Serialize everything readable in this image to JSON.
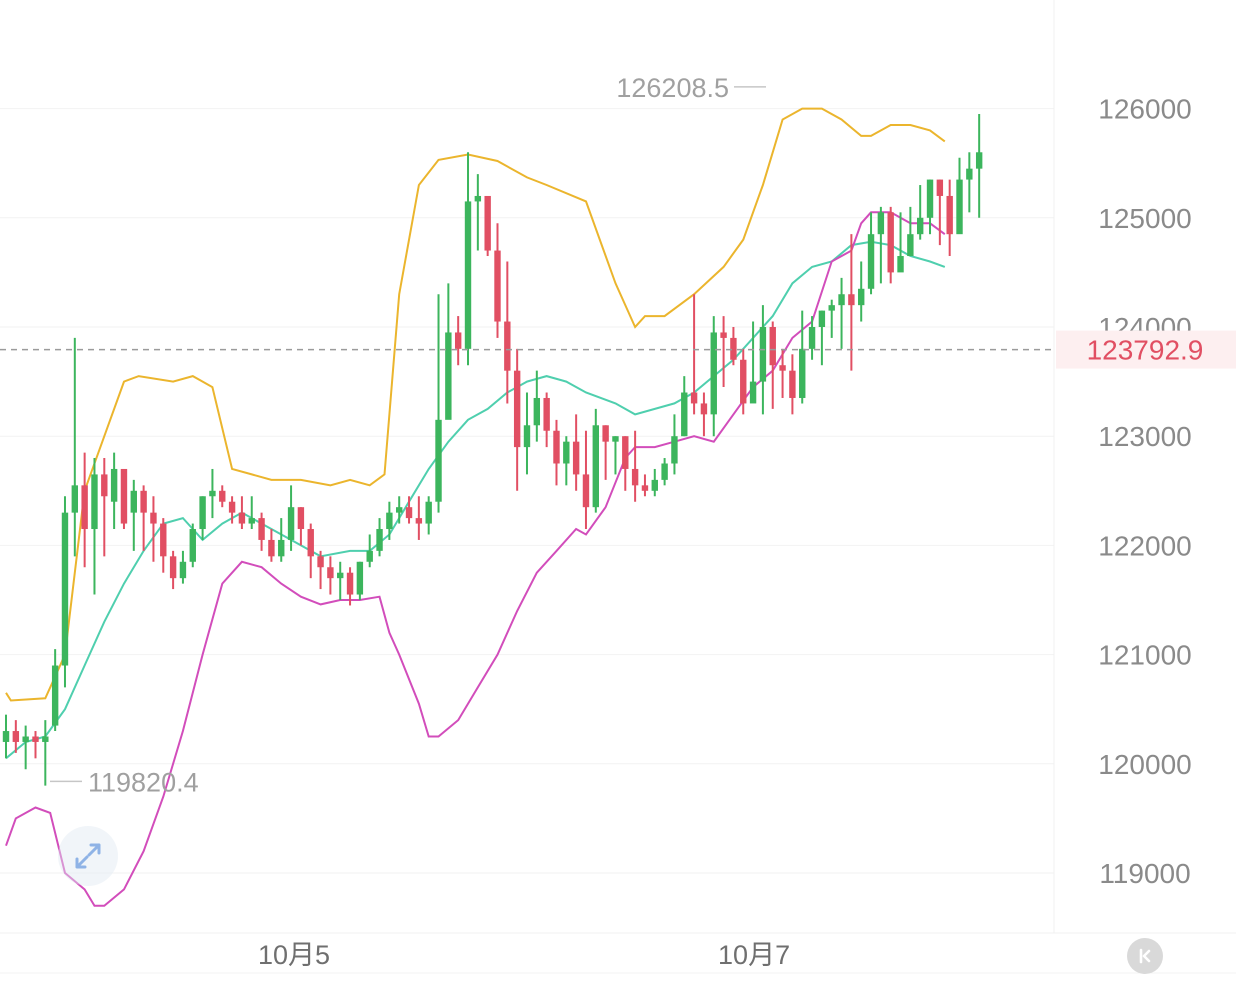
{
  "chart_data": {
    "type": "candlestick",
    "x_ticks": [
      "10月5",
      "10月7"
    ],
    "y_ticks": [
      "126000",
      "125000",
      "124000",
      "123000",
      "122000",
      "121000",
      "120000",
      "119000"
    ],
    "ylim": [
      118500,
      126750
    ],
    "current_price": "123792.9",
    "annotations": {
      "high": "126208.5",
      "low": "119820.4"
    },
    "grid": true,
    "colors": {
      "up": "#3cb55d",
      "down": "#e14f63",
      "upper_band": "#ebb52d",
      "middle_band": "#4fcfae",
      "lower_band": "#d24dbb",
      "price_line": "#9b9b9b",
      "price_label": "#e14f63"
    },
    "bands": {
      "upper": [
        [
          0,
          120650
        ],
        [
          0.5,
          120580
        ],
        [
          4,
          120600
        ],
        [
          6,
          121000
        ],
        [
          8,
          122500
        ],
        [
          10,
          123000
        ],
        [
          12,
          123500
        ],
        [
          13.5,
          123550
        ],
        [
          17,
          123500
        ],
        [
          19,
          123550
        ],
        [
          21,
          123450
        ],
        [
          23,
          122700
        ],
        [
          25,
          122650
        ],
        [
          27,
          122600
        ],
        [
          30,
          122600
        ],
        [
          33,
          122550
        ],
        [
          35,
          122600
        ],
        [
          37,
          122550
        ],
        [
          38.5,
          122650
        ],
        [
          40,
          124300
        ],
        [
          42,
          125300
        ],
        [
          44,
          125530
        ],
        [
          47,
          125580
        ],
        [
          50,
          125520
        ],
        [
          53,
          125370
        ],
        [
          55,
          125300
        ],
        [
          59,
          125150
        ],
        [
          62,
          124400
        ],
        [
          64,
          124000
        ],
        [
          65,
          124100
        ],
        [
          67,
          124100
        ],
        [
          70,
          124300
        ],
        [
          73,
          124550
        ],
        [
          75,
          124800
        ],
        [
          77,
          125300
        ],
        [
          79,
          125900
        ],
        [
          81,
          126000
        ],
        [
          83,
          126000
        ],
        [
          85,
          125900
        ],
        [
          87,
          125750
        ],
        [
          88,
          125750
        ],
        [
          90,
          125850
        ],
        [
          92,
          125850
        ],
        [
          94,
          125800
        ],
        [
          95.5,
          125700
        ]
      ],
      "middle": [
        [
          0,
          120050
        ],
        [
          2,
          120200
        ],
        [
          4,
          120250
        ],
        [
          6,
          120500
        ],
        [
          8,
          120900
        ],
        [
          10,
          121300
        ],
        [
          12,
          121650
        ],
        [
          14,
          121950
        ],
        [
          16,
          122200
        ],
        [
          18,
          122250
        ],
        [
          20,
          122050
        ],
        [
          22,
          122200
        ],
        [
          24,
          122300
        ],
        [
          26,
          122200
        ],
        [
          29,
          122050
        ],
        [
          32,
          121900
        ],
        [
          35,
          121950
        ],
        [
          37,
          121950
        ],
        [
          39,
          122100
        ],
        [
          41,
          122400
        ],
        [
          43,
          122700
        ],
        [
          45,
          122950
        ],
        [
          47,
          123150
        ],
        [
          49,
          123250
        ],
        [
          51,
          123400
        ],
        [
          53,
          123500
        ],
        [
          55,
          123550
        ],
        [
          57,
          123500
        ],
        [
          59,
          123400
        ],
        [
          62,
          123300
        ],
        [
          64,
          123200
        ],
        [
          66,
          123250
        ],
        [
          68,
          123300
        ],
        [
          70,
          123400
        ],
        [
          72,
          123550
        ],
        [
          74,
          123700
        ],
        [
          76,
          123900
        ],
        [
          78,
          124100
        ],
        [
          80,
          124400
        ],
        [
          82,
          124550
        ],
        [
          84,
          124600
        ],
        [
          86,
          124750
        ],
        [
          88,
          124780
        ],
        [
          90,
          124750
        ],
        [
          92,
          124650
        ],
        [
          94,
          124600
        ],
        [
          95.5,
          124550
        ]
      ],
      "lower": [
        [
          0,
          119250
        ],
        [
          1,
          119500
        ],
        [
          3,
          119600
        ],
        [
          4.5,
          119550
        ],
        [
          6,
          119000
        ],
        [
          8,
          118850
        ],
        [
          9,
          118700
        ],
        [
          10,
          118700
        ],
        [
          12,
          118850
        ],
        [
          14,
          119200
        ],
        [
          16,
          119700
        ],
        [
          18,
          120300
        ],
        [
          20,
          121000
        ],
        [
          22,
          121650
        ],
        [
          24,
          121850
        ],
        [
          26,
          121800
        ],
        [
          28,
          121650
        ],
        [
          30,
          121530
        ],
        [
          32,
          121460
        ],
        [
          34,
          121500
        ],
        [
          36,
          121500
        ],
        [
          38,
          121530
        ],
        [
          39,
          121200
        ],
        [
          40,
          121000
        ],
        [
          42,
          120550
        ],
        [
          43,
          120250
        ],
        [
          44,
          120250
        ],
        [
          46,
          120400
        ],
        [
          48,
          120700
        ],
        [
          50,
          121000
        ],
        [
          52,
          121400
        ],
        [
          54,
          121750
        ],
        [
          56,
          121950
        ],
        [
          58,
          122150
        ],
        [
          59,
          122100
        ],
        [
          61,
          122350
        ],
        [
          63,
          122800
        ],
        [
          64,
          122900
        ],
        [
          66,
          122900
        ],
        [
          68,
          122950
        ],
        [
          70,
          123000
        ],
        [
          72,
          122950
        ],
        [
          74,
          123200
        ],
        [
          76,
          123450
        ],
        [
          78,
          123600
        ],
        [
          80,
          123900
        ],
        [
          82,
          124050
        ],
        [
          84,
          124600
        ],
        [
          86,
          124700
        ],
        [
          87,
          124950
        ],
        [
          88,
          125050
        ],
        [
          90,
          125050
        ],
        [
          92,
          124950
        ],
        [
          94,
          124950
        ],
        [
          95.5,
          124850
        ]
      ]
    },
    "candles": [
      [
        120200,
        120300,
        120450,
        120050
      ],
      [
        120300,
        120200,
        120400,
        120100
      ],
      [
        120200,
        120250,
        120350,
        119950
      ],
      [
        120250,
        120200,
        120300,
        120050
      ],
      [
        120200,
        120250,
        120400,
        119800
      ],
      [
        120350,
        120900,
        121050,
        120300
      ],
      [
        120900,
        122300,
        122450,
        120700
      ],
      [
        122300,
        122550,
        123900,
        121900
      ],
      [
        122550,
        122150,
        122850,
        121800
      ],
      [
        122150,
        122650,
        122800,
        121550
      ],
      [
        122650,
        122450,
        122800,
        121900
      ],
      [
        122400,
        122700,
        122850,
        122150
      ],
      [
        122700,
        122200,
        122650,
        122150
      ],
      [
        122300,
        122500,
        122600,
        121950
      ],
      [
        122500,
        122300,
        122550,
        121950
      ],
      [
        122300,
        122200,
        122450,
        121850
      ],
      [
        122200,
        121900,
        122250,
        121750
      ],
      [
        121900,
        121700,
        121950,
        121600
      ],
      [
        121700,
        121850,
        121950,
        121650
      ],
      [
        121850,
        122150,
        122200,
        121800
      ],
      [
        122150,
        122450,
        122450,
        122050
      ],
      [
        122450,
        122500,
        122700,
        122250
      ],
      [
        122500,
        122400,
        122550,
        122350
      ],
      [
        122400,
        122300,
        122450,
        122200
      ],
      [
        122300,
        122200,
        122450,
        122150
      ],
      [
        122200,
        122250,
        122450,
        122150
      ],
      [
        122250,
        122050,
        122300,
        121950
      ],
      [
        122050,
        121900,
        122150,
        121850
      ],
      [
        121900,
        122050,
        122250,
        121850
      ],
      [
        122050,
        122350,
        122550,
        121950
      ],
      [
        122350,
        122150,
        122350,
        122000
      ],
      [
        122150,
        121900,
        122200,
        121700
      ],
      [
        121900,
        121800,
        121950,
        121600
      ],
      [
        121800,
        121700,
        121900,
        121550
      ],
      [
        121700,
        121750,
        121850,
        121500
      ],
      [
        121750,
        121550,
        121800,
        121450
      ],
      [
        121550,
        121850,
        121850,
        121500
      ],
      [
        121850,
        121950,
        122100,
        121800
      ],
      [
        121950,
        122150,
        122250,
        121900
      ],
      [
        122150,
        122300,
        122400,
        122050
      ],
      [
        122300,
        122350,
        122450,
        122200
      ],
      [
        122350,
        122250,
        122450,
        122200
      ],
      [
        122250,
        122200,
        122450,
        122050
      ],
      [
        122200,
        122400,
        122450,
        122100
      ],
      [
        122400,
        123150,
        124300,
        122300
      ],
      [
        123150,
        123950,
        124400,
        123300
      ],
      [
        123950,
        123800,
        124100,
        123650
      ],
      [
        123800,
        125150,
        125600,
        123650
      ],
      [
        125150,
        125200,
        125400,
        124700
      ],
      [
        125200,
        124700,
        124800,
        124650
      ],
      [
        124700,
        124050,
        124950,
        123900
      ],
      [
        124050,
        123600,
        124600,
        123300
      ],
      [
        123600,
        122900,
        123800,
        122500
      ],
      [
        122900,
        123100,
        123400,
        122650
      ],
      [
        123100,
        123350,
        123600,
        122950
      ],
      [
        123350,
        123050,
        123400,
        122900
      ],
      [
        123050,
        122750,
        123150,
        122550
      ],
      [
        122750,
        122950,
        123000,
        122550
      ],
      [
        122950,
        122650,
        123200,
        122500
      ],
      [
        122650,
        122350,
        123050,
        122150
      ],
      [
        122350,
        123100,
        123250,
        122300
      ],
      [
        123100,
        122950,
        123100,
        122600
      ],
      [
        122950,
        123000,
        123000,
        122650
      ],
      [
        123000,
        122700,
        123000,
        122500
      ],
      [
        122700,
        122550,
        123050,
        122400
      ],
      [
        122550,
        122500,
        122650,
        122450
      ],
      [
        122500,
        122600,
        122700,
        122450
      ],
      [
        122600,
        122750,
        122800,
        122550
      ],
      [
        122750,
        123000,
        123200,
        122650
      ],
      [
        123000,
        123400,
        123550,
        123000
      ],
      [
        123400,
        123300,
        124300,
        123200
      ],
      [
        123300,
        123200,
        123400,
        123000
      ],
      [
        123200,
        123950,
        124100,
        123000
      ],
      [
        123950,
        123900,
        124100,
        123450
      ],
      [
        123900,
        123700,
        124000,
        123650
      ],
      [
        123700,
        123300,
        123800,
        123200
      ],
      [
        123300,
        123500,
        124050,
        123350
      ],
      [
        123500,
        124000,
        124200,
        123200
      ],
      [
        124000,
        123650,
        124050,
        123250
      ],
      [
        123650,
        123600,
        123800,
        123350
      ],
      [
        123600,
        123350,
        123750,
        123200
      ],
      [
        123350,
        123800,
        124150,
        123300
      ],
      [
        123800,
        124000,
        124100,
        123700
      ],
      [
        124000,
        124150,
        124150,
        123650
      ],
      [
        124150,
        124200,
        124250,
        123900
      ],
      [
        124200,
        124300,
        124450,
        123800
      ],
      [
        124300,
        124200,
        124850,
        123600
      ],
      [
        124200,
        124350,
        124600,
        124050
      ],
      [
        124350,
        124850,
        125050,
        124300
      ],
      [
        124850,
        125050,
        125100,
        124400
      ],
      [
        125050,
        124500,
        125100,
        124400
      ],
      [
        124500,
        124650,
        125050,
        124550
      ],
      [
        124650,
        124850,
        125100,
        124800
      ],
      [
        124850,
        125000,
        125300,
        124800
      ],
      [
        125000,
        125350,
        125350,
        124850
      ],
      [
        125350,
        125200,
        125350,
        124750
      ],
      [
        125200,
        124850,
        125350,
        124650
      ],
      [
        124850,
        125350,
        125550,
        125000
      ],
      [
        125350,
        125450,
        125600,
        125050
      ],
      [
        125450,
        125600,
        125950,
        125000
      ]
    ]
  },
  "controls": {
    "expand": "expand-arrows",
    "collapse": "collapse-arrow"
  }
}
